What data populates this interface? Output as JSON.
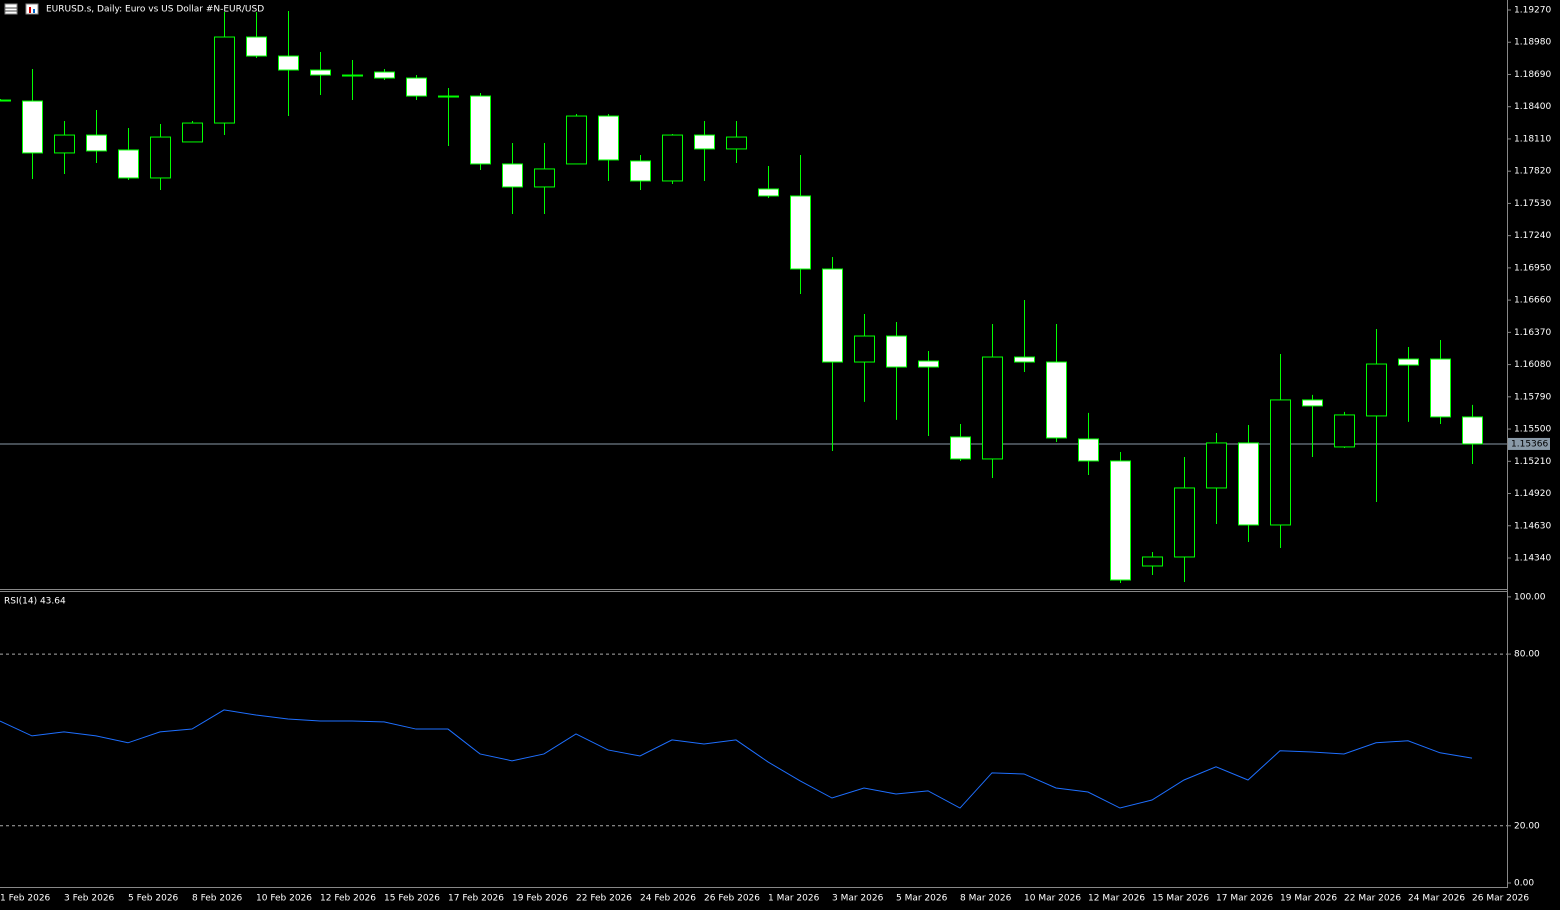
{
  "chart_data": [
    {
      "type": "candlestick",
      "title": "EURUSD.s, Daily:  Euro vs US Dollar #N-EUR/USD",
      "categories": [
        "1 Feb 2026",
        null,
        "3 Feb 2026",
        null,
        "5 Feb 2026",
        null,
        "8 Feb 2026",
        null,
        "10 Feb 2026",
        null,
        "12 Feb 2026",
        null,
        "15 Feb 2026",
        null,
        "17 Feb 2026",
        null,
        "19 Feb 2026",
        null,
        "22 Feb 2026",
        null,
        "24 Feb 2026",
        null,
        "26 Feb 2026",
        null,
        "1 Mar 2026",
        null,
        "3 Mar 2026",
        null,
        "5 Mar 2026",
        null,
        "8 Mar 2026",
        null,
        "10 Mar 2026",
        null,
        "12 Mar 2026",
        null,
        "15 Mar 2026",
        null,
        "17 Mar 2026",
        null,
        "19 Mar 2026",
        null,
        "22 Mar 2026",
        null,
        "24 Mar 2026",
        null,
        "26 Mar 2026"
      ],
      "open": [
        1.1846,
        1.18451,
        1.17984,
        1.18145,
        1.18011,
        1.17759,
        1.18083,
        1.18253,
        1.19027,
        1.18856,
        1.1873,
        1.18685,
        1.18712,
        1.18658,
        1.18496,
        1.18496,
        1.17885,
        1.17678,
        1.17885,
        1.18316,
        1.17912,
        1.17732,
        1.18145,
        1.1802,
        1.1766,
        1.17597,
        1.1694,
        1.16103,
        1.16337,
        1.16112,
        1.15429,
        1.15231,
        1.16148,
        1.16103,
        1.15411,
        1.15213,
        1.14268,
        1.14349,
        1.1497,
        1.15375,
        1.14637,
        1.15762,
        1.15339,
        1.15618,
        1.1613,
        1.1613,
        1.15609
      ],
      "high": [
        1.18469,
        1.18739,
        1.18271,
        1.1837,
        1.18208,
        1.18244,
        1.18271,
        1.19252,
        1.19252,
        1.19261,
        1.18892,
        1.1882,
        1.18739,
        1.18685,
        1.18568,
        1.18523,
        1.18074,
        1.18074,
        1.18334,
        1.18334,
        1.17966,
        1.18154,
        1.18271,
        1.18271,
        1.17867,
        1.17966,
        1.17048,
        1.16535,
        1.16463,
        1.16202,
        1.15546,
        1.16445,
        1.16661,
        1.16445,
        1.15645,
        1.15294,
        1.14394,
        1.15249,
        1.15465,
        1.15537,
        1.16175,
        1.15807,
        1.15654,
        1.164,
        1.16238,
        1.16301,
        1.15717
      ],
      "low": [
        1.18451,
        1.1775,
        1.17795,
        1.17894,
        1.17741,
        1.17651,
        1.18083,
        1.18145,
        1.18838,
        1.18316,
        1.18505,
        1.1846,
        1.1864,
        1.1846,
        1.18047,
        1.17831,
        1.17435,
        1.17435,
        1.17885,
        1.17732,
        1.17651,
        1.17705,
        1.17732,
        1.17894,
        1.17579,
        1.16715,
        1.15303,
        1.15744,
        1.15582,
        1.15438,
        1.15213,
        1.1506,
        1.16013,
        1.15384,
        1.15087,
        1.14115,
        1.14187,
        1.14124,
        1.14646,
        1.14484,
        1.1443,
        1.15249,
        1.1533,
        1.14844,
        1.15564,
        1.15546,
        1.15186
      ],
      "close": [
        1.1846,
        1.17984,
        1.18145,
        1.18002,
        1.17759,
        1.18127,
        1.18253,
        1.19027,
        1.18856,
        1.1873,
        1.18685,
        1.18676,
        1.18658,
        1.18496,
        1.18487,
        1.17885,
        1.17678,
        1.1784,
        1.18316,
        1.17921,
        1.17732,
        1.18145,
        1.1802,
        1.18127,
        1.17597,
        1.1694,
        1.16103,
        1.16337,
        1.16058,
        1.16058,
        1.15231,
        1.16148,
        1.16103,
        1.1542,
        1.15213,
        1.14142,
        1.14349,
        1.1497,
        1.15375,
        1.14637,
        1.15762,
        1.15708,
        1.15627,
        1.16085,
        1.16076,
        1.15609,
        1.15366
      ],
      "up_color": "#000000",
      "down_color": "#ffffff",
      "wick_color": "#00ff00",
      "current_price": {
        "value": 1.15366,
        "label": "1.15366"
      },
      "ylim": [
        1.1407,
        1.1936
      ],
      "yticks": [
        {
          "value": 1.1927,
          "label": "1.19270"
        },
        {
          "value": 1.1898,
          "label": "1.18980"
        },
        {
          "value": 1.1869,
          "label": "1.18690"
        },
        {
          "value": 1.184,
          "label": "1.18400"
        },
        {
          "value": 1.1811,
          "label": "1.18110"
        },
        {
          "value": 1.1782,
          "label": "1.17820"
        },
        {
          "value": 1.1753,
          "label": "1.17530"
        },
        {
          "value": 1.1724,
          "label": "1.17240"
        },
        {
          "value": 1.1695,
          "label": "1.16950"
        },
        {
          "value": 1.1666,
          "label": "1.16660"
        },
        {
          "value": 1.1637,
          "label": "1.16370"
        },
        {
          "value": 1.1608,
          "label": "1.16080"
        },
        {
          "value": 1.1579,
          "label": "1.15790"
        },
        {
          "value": 1.155,
          "label": "1.15500"
        },
        {
          "value": 1.1521,
          "label": "1.15210"
        },
        {
          "value": 1.1492,
          "label": "1.14920"
        },
        {
          "value": 1.1463,
          "label": "1.14630"
        },
        {
          "value": 1.1434,
          "label": "1.14340"
        }
      ]
    },
    {
      "type": "line",
      "label": "RSI(14) 43.64",
      "values": [
        56.6,
        51.4,
        52.8,
        51.4,
        49.0,
        52.8,
        53.8,
        60.5,
        58.7,
        57.3,
        56.6,
        56.6,
        56.3,
        53.8,
        53.8,
        45.1,
        42.7,
        45.1,
        52.1,
        46.5,
        44.4,
        50.0,
        48.6,
        50.0,
        42.3,
        35.7,
        29.7,
        33.2,
        31.1,
        32.2,
        26.2,
        38.5,
        38.1,
        33.2,
        31.8,
        26.2,
        29.0,
        36.0,
        40.6,
        36.0,
        46.2,
        45.8,
        45.1,
        49.0,
        49.7,
        45.5,
        43.64
      ],
      "color": "#1e6fff",
      "levels": [
        80,
        20
      ],
      "ylim": [
        -1.4,
        101.7
      ],
      "yticks": [
        {
          "value": 100,
          "label": "100.00"
        },
        {
          "value": 80,
          "label": "80.00"
        },
        {
          "value": 20,
          "label": "20.00"
        },
        {
          "value": 0,
          "label": "0.00"
        }
      ]
    }
  ]
}
